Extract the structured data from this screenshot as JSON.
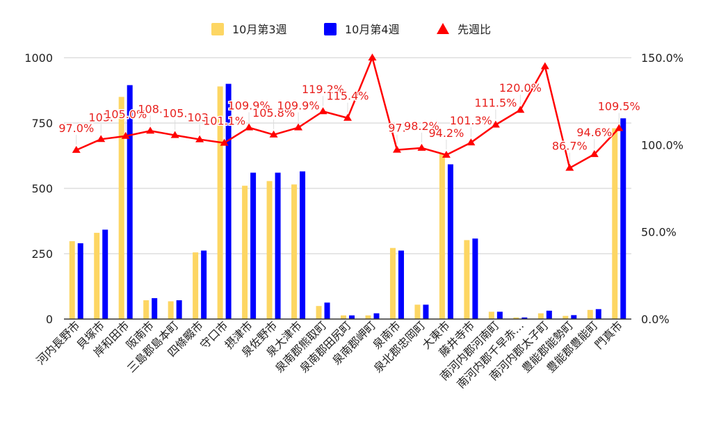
{
  "chart_data": {
    "type": "bar",
    "categories": [
      "河内長野市",
      "貝塚市",
      "岸和田市",
      "阪南市",
      "三島郡島本町",
      "四條畷市",
      "守口市",
      "摂津市",
      "泉佐野市",
      "泉大津市",
      "泉南郡熊取町",
      "泉南郡田尻町",
      "泉南郡岬町",
      "泉南市",
      "泉北郡忠岡町",
      "大東市",
      "藤井寺市",
      "南河内郡河南町",
      "南河内郡千早赤…",
      "南河内郡太子町",
      "豊能郡能勢町",
      "豊能郡豊能町",
      "門真市"
    ],
    "series": [
      {
        "name": "10月第3週",
        "color": "#fdd663",
        "axis": "left",
        "values": [
          298,
          330,
          850,
          72,
          68,
          255,
          890,
          510,
          528,
          515,
          50,
          14,
          14,
          272,
          55,
          632,
          302,
          28,
          6,
          22,
          12,
          35,
          730
        ]
      },
      {
        "name": "10月第4週",
        "color": "#0000ff",
        "axis": "left",
        "values": [
          290,
          342,
          895,
          80,
          72,
          262,
          900,
          560,
          560,
          565,
          63,
          14,
          22,
          262,
          55,
          592,
          308,
          28,
          6,
          32,
          15,
          38,
          768
        ]
      },
      {
        "name": "先週比",
        "color": "#ff0000",
        "axis": "right",
        "type": "line",
        "values": [
          97.0,
          103.2,
          105.0,
          108.0,
          105.5,
          103.1,
          101.1,
          109.9,
          105.8,
          109.9,
          119.2,
          115.4,
          150.0,
          97.1,
          98.2,
          94.2,
          101.3,
          111.5,
          120.0,
          145.0,
          86.7,
          94.6,
          109.5
        ],
        "labels": [
          "97.0%",
          "103.",
          "105.0%",
          "108.",
          "105.",
          "103.",
          "101.1%",
          "109.9%",
          "105.8%",
          "109.9%",
          "119.2%",
          "115.4%",
          "",
          "97.",
          "98.2%",
          "94.2%",
          "101.3%",
          "111.5%",
          "120.0%",
          "",
          "86.7%",
          "94.6%",
          "109.5%"
        ]
      }
    ],
    "y_left": {
      "min": 0,
      "max": 1000,
      "ticks": [
        0,
        250,
        500,
        750,
        1000
      ],
      "tick_labels": [
        "0",
        "250",
        "500",
        "750",
        "1000"
      ]
    },
    "y_right": {
      "min": 0,
      "max": 150,
      "ticks": [
        0,
        50,
        100,
        150
      ],
      "tick_labels": [
        "0.0%",
        "50.0%",
        "100.0%",
        "150.0%"
      ]
    },
    "legend": {
      "position": "top",
      "items": [
        "10月第3週",
        "10月第4週",
        "先週比"
      ]
    },
    "grid": {
      "horizontal": true,
      "color": "#cccccc"
    }
  }
}
